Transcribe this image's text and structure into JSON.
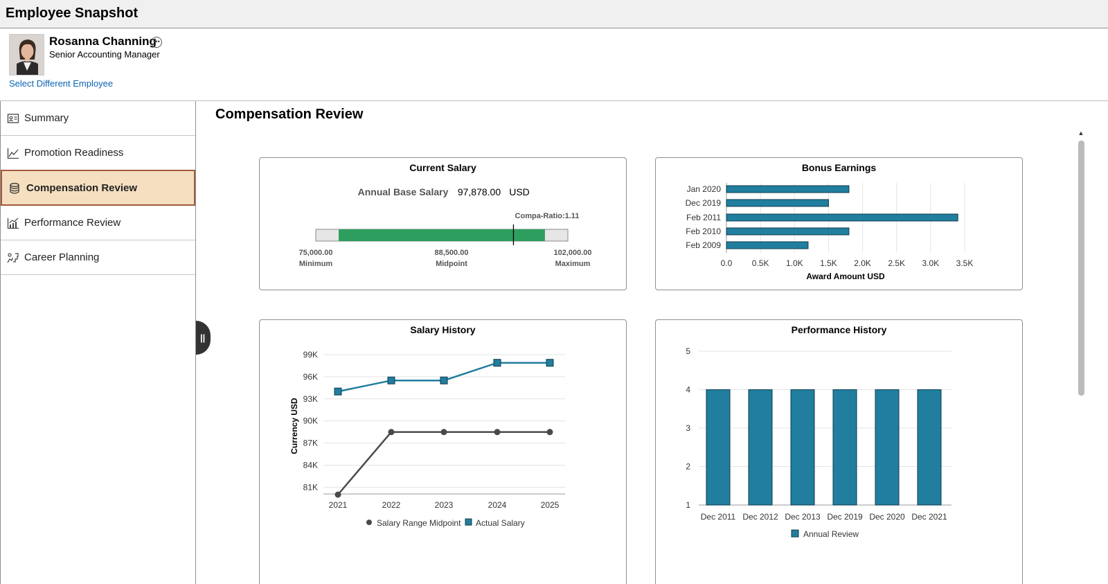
{
  "app": {
    "title": "Employee Snapshot"
  },
  "employee": {
    "name": "Rosanna Channing",
    "job_title": "Senior Accounting Manager",
    "more_icon": "ellipsis-icon",
    "select_link": "Select Different Employee"
  },
  "nav": {
    "items": [
      {
        "label": "Summary",
        "icon": "id-card-icon"
      },
      {
        "label": "Promotion Readiness",
        "icon": "line-chart-icon"
      },
      {
        "label": "Compensation Review",
        "icon": "database-icon"
      },
      {
        "label": "Performance Review",
        "icon": "bar-trend-icon"
      },
      {
        "label": "Career Planning",
        "icon": "career-steps-icon"
      }
    ],
    "active_index": 2
  },
  "main": {
    "title": "Compensation Review"
  },
  "colors": {
    "teal": "#217e9e",
    "green": "#2e9e5e",
    "dark_line": "#4a4a4a",
    "active_nav_bg": "#f5dfc0",
    "active_nav_border": "#a05a40",
    "link": "#0a64b4"
  },
  "current_salary": {
    "title": "Current Salary",
    "annual_label": "Annual Base Salary",
    "amount": "97,878.00",
    "currency": "USD",
    "compa_ratio_label": "Compa-Ratio:1.11",
    "min_value": "75,000.00",
    "min_label": "Minimum",
    "mid_value": "88,500.00",
    "mid_label": "Midpoint",
    "max_value": "102,000.00",
    "max_label": "Maximum",
    "range": {
      "bar_min": 72000,
      "bar_max": 105000,
      "band_min": 75000,
      "band_max": 102000,
      "marker": 97878
    }
  },
  "bonus_chart": {
    "title": "Bonus Earnings",
    "chart_data": {
      "type": "bar",
      "orientation": "horizontal",
      "categories": [
        "Jan 2020",
        "Dec 2019",
        "Feb 2011",
        "Feb 2010",
        "Feb 2009"
      ],
      "values": [
        1800,
        1500,
        3400,
        1800,
        1200
      ],
      "xlabel": "Award Amount USD",
      "xlim": [
        0,
        3500
      ],
      "x_ticks": [
        0,
        500,
        1000,
        1500,
        2000,
        2500,
        3000,
        3500
      ],
      "x_tick_labels": [
        "0.0",
        "0.5K",
        "1.0K",
        "1.5K",
        "2.0K",
        "2.5K",
        "3.0K",
        "3.5K"
      ],
      "grid": true
    }
  },
  "salary_history": {
    "title": "Salary History",
    "chart_data": {
      "type": "line",
      "x": [
        "2021",
        "2022",
        "2023",
        "2024",
        "2025"
      ],
      "series": [
        {
          "name": "Salary Range Midpoint",
          "values": [
            80000,
            88500,
            88500,
            88500,
            88500
          ],
          "color": "#4a4a4a",
          "marker": "circle"
        },
        {
          "name": "Actual Salary",
          "values": [
            94000,
            95500,
            95500,
            97900,
            97900
          ],
          "color": "#217e9e",
          "marker": "square"
        }
      ],
      "ylabel": "Currency USD",
      "ylim": [
        80000,
        99000
      ],
      "y_ticks": [
        81000,
        84000,
        87000,
        90000,
        93000,
        96000,
        99000
      ],
      "y_tick_labels": [
        "81K",
        "84K",
        "87K",
        "90K",
        "93K",
        "96K",
        "99K"
      ],
      "legend": "bottom",
      "grid": true
    }
  },
  "performance_history": {
    "title": "Performance History",
    "chart_data": {
      "type": "bar",
      "categories": [
        "Dec 2011",
        "Dec 2012",
        "Dec 2013",
        "Dec 2019",
        "Dec 2020",
        "Dec 2021"
      ],
      "series": [
        {
          "name": "Annual Review",
          "values": [
            4,
            4,
            4,
            4,
            4,
            4
          ],
          "color": "#217e9e"
        }
      ],
      "ylim": [
        1,
        5
      ],
      "y_ticks": [
        1,
        2,
        3,
        4,
        5
      ],
      "y_tick_labels": [
        "1",
        "2",
        "3",
        "4",
        "5"
      ],
      "legend": "bottom",
      "grid": true
    }
  }
}
